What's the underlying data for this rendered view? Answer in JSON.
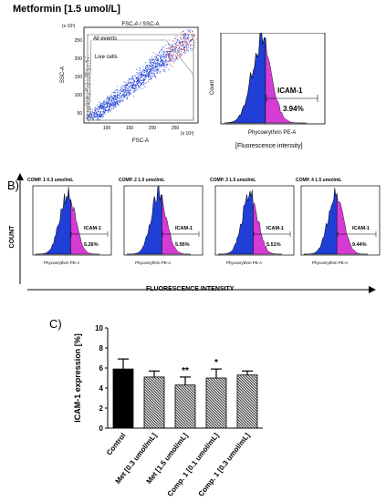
{
  "top": {
    "title": "Metformin [1.5 umol/L]",
    "scatter": {
      "title": "FSC-A / SSC-A",
      "ylabel": "SSC-A",
      "xlabel": "FSC-A",
      "y_unit": "(x 10³)",
      "x_unit": "(x 10³)",
      "y_ticks": [
        "50",
        "100",
        "150",
        "200",
        "250"
      ],
      "x_ticks": [
        "100",
        "150",
        "200",
        "250"
      ],
      "gate_all": "All events",
      "gate_live": "Live cells",
      "gate_p1": "P1",
      "gate_p2": "P2"
    },
    "histogram": {
      "ylabel": "Count",
      "xlabel": "Phycoerythrin PE-A",
      "marker_label": "ICAM-1",
      "value": "3.94%",
      "caption": "[Fluorescence intensity]"
    }
  },
  "panel_b": {
    "letter": "B)",
    "ylabel": "COUNT",
    "xlabel": "FLUORESCENCE INTENSITY",
    "histograms": [
      {
        "name": "COMP. 1",
        "conc": "0.3 umol/mL",
        "value": "5.26%",
        "marker": "ICAM-1",
        "xlabel": "Phycoerythrin PE-A"
      },
      {
        "name": "COMP. 2",
        "conc": "1.0 umol/mL",
        "value": "5.95%",
        "marker": "ICAM-1",
        "xlabel": "Phycoerythrin PE-A"
      },
      {
        "name": "COMP. 3",
        "conc": "1.5 umol/mL",
        "value": "5.51%",
        "marker": "ICAM-1",
        "xlabel": "Phycoerythrin PE-A"
      },
      {
        "name": "COMP. 4",
        "conc": "1.5 umol/mL",
        "value": "9.44%",
        "marker": "ICAM-1",
        "xlabel": "Phycoerythrin PE-A"
      }
    ]
  },
  "panel_c": {
    "letter": "C)"
  },
  "colors": {
    "events": "#1f3fd6",
    "tail": "#d63bd6",
    "bar_control": "#000000",
    "bar_hatch": "#3a3a3a"
  },
  "chart_data": {
    "type": "bar",
    "ylabel": "ICAM-1 expression [%]",
    "ylim": [
      0,
      10
    ],
    "yticks": [
      "0",
      "2",
      "4",
      "6",
      "8",
      "10"
    ],
    "categories": [
      "Control",
      "Met [0.3 umol/mL]",
      "Met [1.5 umol/mL]",
      "Comp. 1 [0.1 umol/mL]",
      "Comp. 1 [0.3 umol/mL]"
    ],
    "values": [
      5.9,
      5.1,
      4.3,
      5.0,
      5.3
    ],
    "errors": [
      1.0,
      0.6,
      0.8,
      0.9,
      0.4
    ],
    "significance": [
      "",
      "",
      "**",
      "*",
      ""
    ]
  }
}
